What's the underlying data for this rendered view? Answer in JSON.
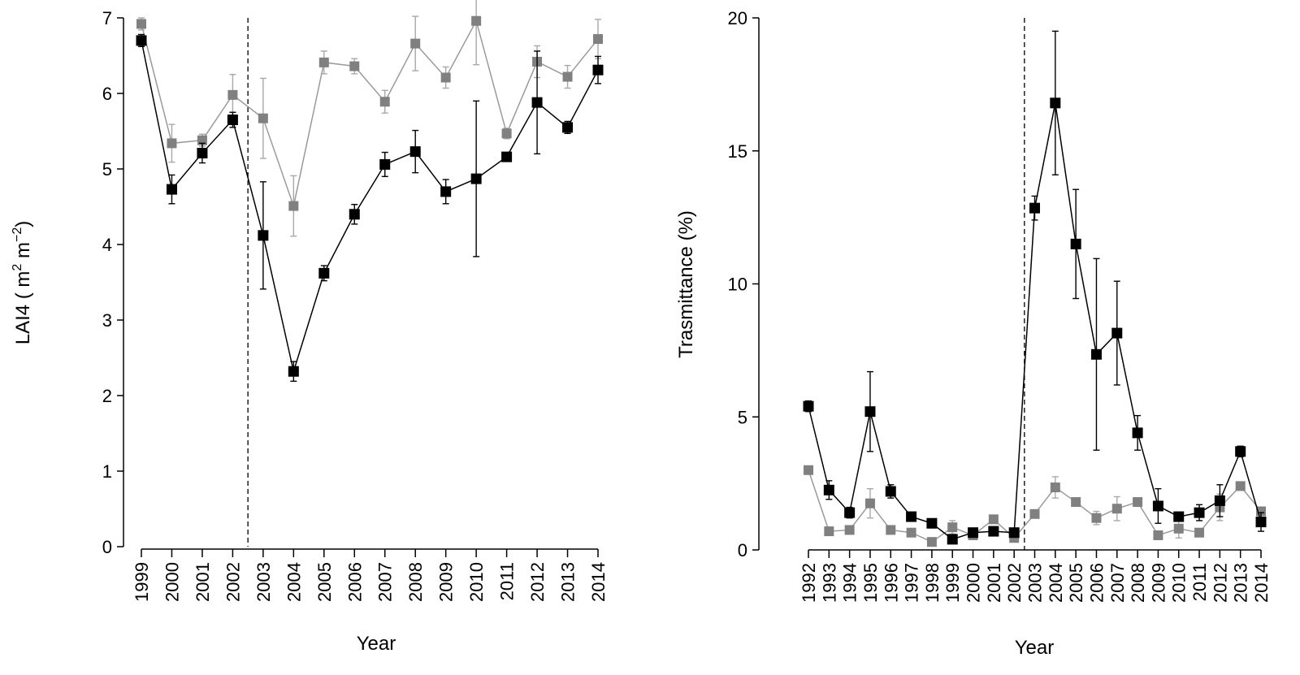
{
  "colors": {
    "series_black": "#000000",
    "series_gray": "#808080",
    "series_gray_line": "#9a9a9a",
    "error_gray": "#a8a8a8"
  },
  "chart_data": [
    {
      "type": "line",
      "title": "",
      "xlabel": "Year",
      "ylabel": "LAI4  (m 2 m−2)",
      "ylabel_parts": {
        "main": "LAI4  ( m",
        "sup1": "2",
        "mid": " m",
        "sup2": "−2",
        "end": ")"
      },
      "categories": [
        "1999",
        "2000",
        "2001",
        "2002",
        "2003",
        "2004",
        "2005",
        "2006",
        "2007",
        "2008",
        "2009",
        "2010",
        "2011",
        "2012",
        "2013",
        "2014"
      ],
      "ylim": [
        0,
        7
      ],
      "yticks": [
        "0",
        "1",
        "2",
        "3",
        "4",
        "5",
        "6",
        "7"
      ],
      "vertical_dashed_line_at": 2002.5,
      "series": [
        {
          "color": "gray",
          "values": [
            6.92,
            5.34,
            5.38,
            5.98,
            5.67,
            4.51,
            6.41,
            6.36,
            5.89,
            6.66,
            6.21,
            6.96,
            5.47,
            6.42,
            6.22,
            6.72
          ],
          "errors": [
            0.08,
            0.25,
            0.08,
            0.27,
            0.53,
            0.4,
            0.15,
            0.1,
            0.15,
            0.36,
            0.14,
            0.58,
            0.07,
            0.21,
            0.15,
            0.26
          ]
        },
        {
          "color": "black",
          "values": [
            6.7,
            4.73,
            5.21,
            5.65,
            4.12,
            2.32,
            3.62,
            4.4,
            5.06,
            5.23,
            4.7,
            4.87,
            5.16,
            5.88,
            5.55,
            6.31
          ],
          "errors": [
            0.08,
            0.19,
            0.13,
            0.1,
            0.71,
            0.13,
            0.1,
            0.13,
            0.16,
            0.28,
            0.16,
            1.03,
            0.03,
            0.68,
            0.08,
            0.18
          ]
        }
      ]
    },
    {
      "type": "line",
      "title": "",
      "xlabel": "Year",
      "ylabel": "Trasmittance (%)",
      "categories": [
        "1992",
        "1993",
        "1994",
        "1995",
        "1996",
        "1997",
        "1998",
        "1999",
        "2000",
        "2001",
        "2002",
        "2003",
        "2004",
        "2005",
        "2006",
        "2007",
        "2008",
        "2009",
        "2010",
        "2011",
        "2012",
        "2013",
        "2014"
      ],
      "ylim": [
        0,
        20
      ],
      "yticks": [
        "0",
        "5",
        "10",
        "15",
        "20"
      ],
      "vertical_dashed_line_at": 2002.5,
      "series": [
        {
          "color": "gray",
          "values": [
            3.0,
            0.7,
            0.75,
            1.75,
            0.75,
            0.65,
            0.3,
            0.85,
            0.55,
            1.15,
            0.45,
            1.35,
            2.35,
            1.8,
            1.2,
            1.55,
            1.8,
            0.55,
            0.8,
            0.65,
            1.6,
            2.4,
            1.45
          ],
          "errors": [
            0.1,
            0.08,
            0.08,
            0.55,
            0.1,
            0.08,
            0.05,
            0.25,
            0.1,
            0.1,
            0.1,
            0.1,
            0.4,
            0.1,
            0.25,
            0.45,
            0.1,
            0.1,
            0.35,
            0.1,
            0.5,
            0.15,
            0.1
          ]
        },
        {
          "color": "black",
          "values": [
            5.4,
            2.25,
            1.4,
            5.2,
            2.2,
            1.25,
            1.0,
            0.4,
            0.65,
            0.7,
            0.65,
            12.85,
            16.8,
            11.5,
            7.35,
            8.15,
            4.4,
            1.65,
            1.25,
            1.4,
            1.85,
            3.7,
            1.05
          ],
          "errors": [
            0.2,
            0.35,
            0.2,
            1.5,
            0.25,
            0.1,
            0.1,
            0.1,
            0.1,
            0.1,
            0.1,
            0.45,
            2.7,
            2.05,
            3.6,
            1.95,
            0.65,
            0.65,
            0.15,
            0.3,
            0.6,
            0.2,
            0.35
          ]
        }
      ]
    }
  ]
}
